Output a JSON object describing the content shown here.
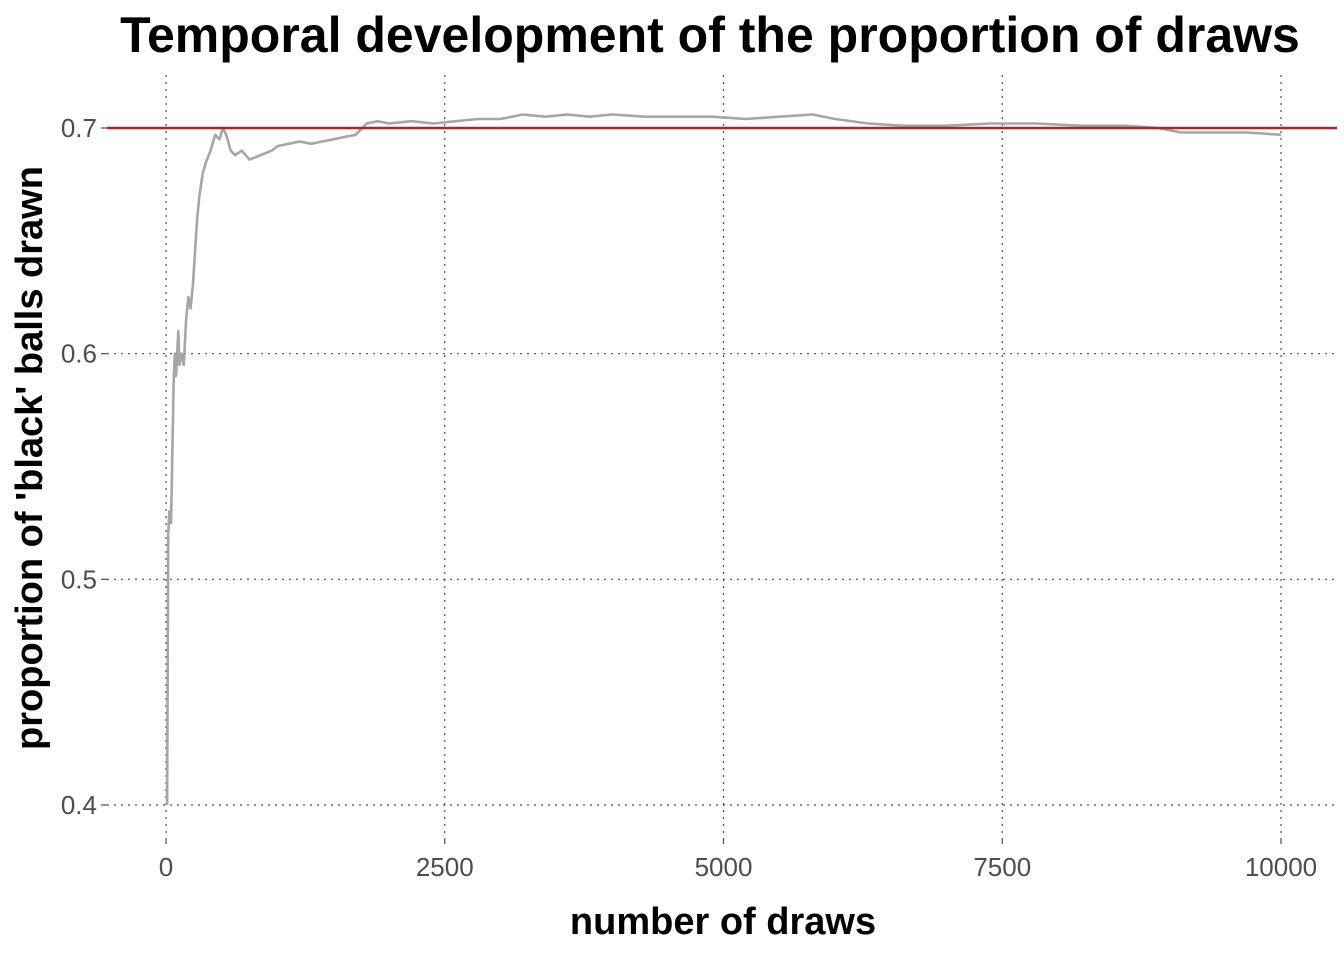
{
  "chart_data": {
    "type": "line",
    "title": "Temporal development of the proportion of draws",
    "xlabel": "number of draws",
    "ylabel": "proportion of 'black' balls drawn",
    "xlim": [
      0,
      10000
    ],
    "ylim": [
      0.4,
      0.7
    ],
    "x_ticks": [
      0,
      2500,
      5000,
      7500,
      10000
    ],
    "x_tick_labels": [
      "0",
      "2500",
      "5000",
      "7500",
      "10000"
    ],
    "y_ticks": [
      0.4,
      0.5,
      0.6,
      0.7
    ],
    "y_tick_labels": [
      "0.4",
      "0.5",
      "0.6",
      "0.7"
    ],
    "grid": true,
    "reference_line": {
      "y": 0.7,
      "color": "#b22222"
    },
    "series": [
      {
        "color": "#a6a6a6",
        "points": [
          [
            10,
            0.4
          ],
          [
            15,
            0.46
          ],
          [
            20,
            0.52
          ],
          [
            30,
            0.53
          ],
          [
            45,
            0.525
          ],
          [
            55,
            0.55
          ],
          [
            70,
            0.59
          ],
          [
            80,
            0.6
          ],
          [
            90,
            0.59
          ],
          [
            100,
            0.6
          ],
          [
            110,
            0.61
          ],
          [
            120,
            0.595
          ],
          [
            140,
            0.6
          ],
          [
            160,
            0.595
          ],
          [
            180,
            0.615
          ],
          [
            200,
            0.625
          ],
          [
            220,
            0.62
          ],
          [
            240,
            0.63
          ],
          [
            260,
            0.645
          ],
          [
            280,
            0.66
          ],
          [
            300,
            0.67
          ],
          [
            330,
            0.68
          ],
          [
            360,
            0.685
          ],
          [
            400,
            0.69
          ],
          [
            440,
            0.697
          ],
          [
            480,
            0.695
          ],
          [
            510,
            0.7
          ],
          [
            540,
            0.697
          ],
          [
            580,
            0.69
          ],
          [
            620,
            0.688
          ],
          [
            680,
            0.69
          ],
          [
            750,
            0.686
          ],
          [
            800,
            0.687
          ],
          [
            850,
            0.688
          ],
          [
            900,
            0.689
          ],
          [
            950,
            0.69
          ],
          [
            1000,
            0.692
          ],
          [
            1100,
            0.693
          ],
          [
            1200,
            0.694
          ],
          [
            1300,
            0.693
          ],
          [
            1400,
            0.694
          ],
          [
            1500,
            0.695
          ],
          [
            1600,
            0.696
          ],
          [
            1700,
            0.697
          ],
          [
            1800,
            0.702
          ],
          [
            1900,
            0.703
          ],
          [
            2000,
            0.702
          ],
          [
            2200,
            0.703
          ],
          [
            2400,
            0.702
          ],
          [
            2600,
            0.703
          ],
          [
            2800,
            0.704
          ],
          [
            3000,
            0.704
          ],
          [
            3200,
            0.706
          ],
          [
            3400,
            0.705
          ],
          [
            3600,
            0.706
          ],
          [
            3800,
            0.705
          ],
          [
            4000,
            0.706
          ],
          [
            4300,
            0.705
          ],
          [
            4600,
            0.705
          ],
          [
            4900,
            0.705
          ],
          [
            5200,
            0.704
          ],
          [
            5500,
            0.705
          ],
          [
            5800,
            0.706
          ],
          [
            6000,
            0.704
          ],
          [
            6300,
            0.702
          ],
          [
            6600,
            0.701
          ],
          [
            7000,
            0.701
          ],
          [
            7400,
            0.702
          ],
          [
            7800,
            0.702
          ],
          [
            8200,
            0.701
          ],
          [
            8600,
            0.701
          ],
          [
            8900,
            0.7
          ],
          [
            9100,
            0.698
          ],
          [
            9300,
            0.698
          ],
          [
            9500,
            0.698
          ],
          [
            9700,
            0.698
          ],
          [
            10000,
            0.697
          ]
        ]
      }
    ]
  }
}
